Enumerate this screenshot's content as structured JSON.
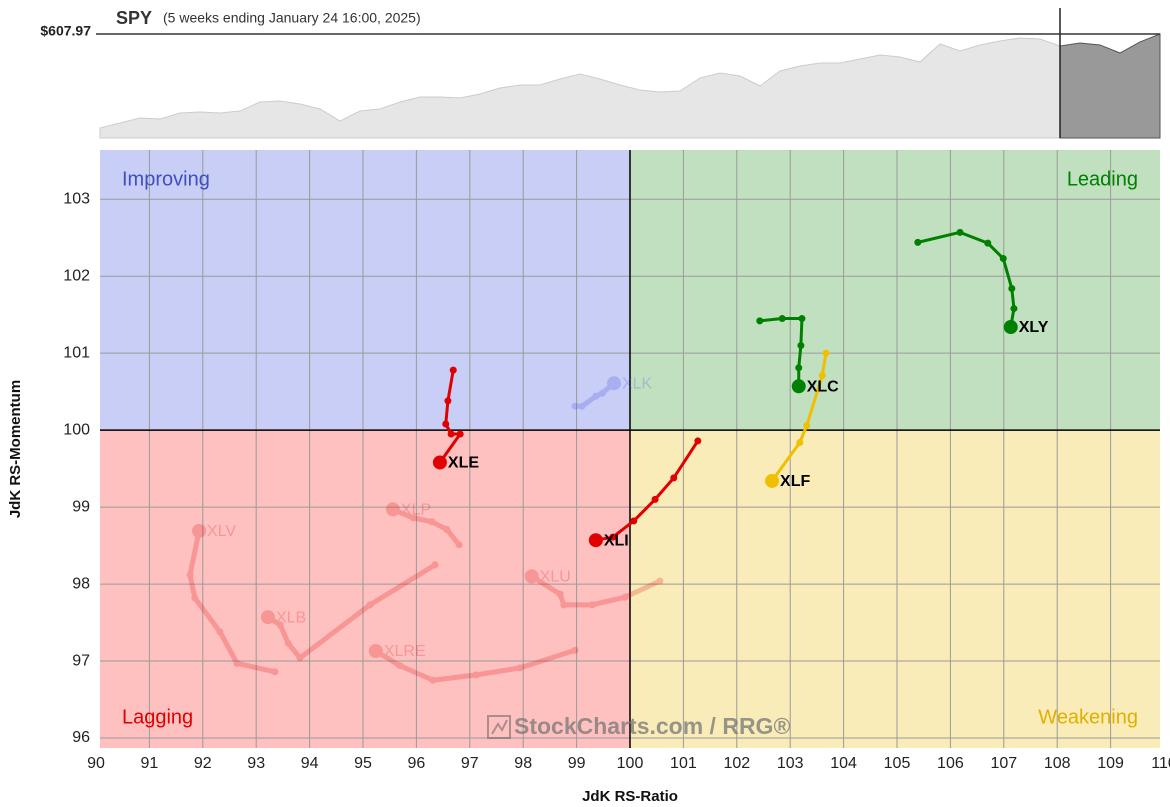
{
  "chart_data": [
    {
      "type": "area",
      "title": "SPY",
      "subtitle": "(5 weeks ending January 24 16:00, 2025)",
      "last_label": "$607.97",
      "color": "#e6e6e6",
      "highlight_color": "#999999",
      "ylim": [
        480,
        640
      ],
      "values": [
        492.3,
        498.5,
        504.6,
        503.4,
        510.8,
        512.0,
        510.8,
        513.2,
        524.3,
        525.5,
        521.8,
        515.7,
        500.9,
        513.2,
        515.7,
        524.3,
        530.5,
        530.5,
        529.2,
        534.2,
        541.5,
        545.2,
        545.2,
        552.6,
        558.8,
        552.6,
        545.2,
        539.1,
        536.6,
        537.8,
        553.8,
        560.0,
        556.3,
        544.0,
        562.5,
        568.6,
        572.3,
        572.3,
        577.2,
        582.2,
        579.7,
        573.5,
        595.7,
        587.1,
        594.5,
        599.4,
        603.1,
        601.8,
        593.2,
        596.9,
        594.5,
        584.6,
        598.2,
        607.97
      ]
    },
    {
      "type": "rrg",
      "xlabel": "JdK RS-Ratio",
      "ylabel": "JdK RS-Momentum",
      "watermark": "StockCharts.com / RRG®",
      "xlim": [
        90,
        110
      ],
      "ylim": [
        95.87,
        103.64
      ],
      "center": [
        100,
        100
      ],
      "grid": true,
      "xticks": [
        90,
        91,
        92,
        93,
        94,
        95,
        96,
        97,
        98,
        99,
        100,
        101,
        102,
        103,
        104,
        105,
        106,
        107,
        108,
        109,
        110
      ],
      "yticks": [
        96,
        97,
        98,
        99,
        100,
        101,
        102,
        103
      ],
      "quadrants": [
        {
          "label": "Improving",
          "color": "#c8cef5",
          "label_color": "#3f4fc0"
        },
        {
          "label": "Leading",
          "color": "#c0e0c0",
          "label_color": "#008000"
        },
        {
          "label": "Lagging",
          "color": "#ffc0c0",
          "label_color": "#e00000"
        },
        {
          "label": "Weakening",
          "color": "#faecb8",
          "label_color": "#e0b000"
        }
      ],
      "series": [
        {
          "name": "XLK",
          "color": "#4040e0",
          "faded": true,
          "x": [
            98.97,
            99.1,
            99.36,
            99.48,
            99.7
          ],
          "values": [
            100.31,
            100.31,
            100.44,
            100.48,
            100.61
          ]
        },
        {
          "name": "XLV",
          "color": "#e00000",
          "faded": true,
          "x": [
            93.35,
            92.64,
            92.32,
            91.85,
            91.76,
            91.93
          ],
          "values": [
            96.86,
            96.97,
            97.38,
            97.82,
            98.12,
            98.69
          ]
        },
        {
          "name": "XLP",
          "color": "#e00000",
          "faded": true,
          "x": [
            96.8,
            96.57,
            96.29,
            95.94,
            95.56
          ],
          "values": [
            98.51,
            98.71,
            98.81,
            98.86,
            98.97
          ]
        },
        {
          "name": "XLB",
          "color": "#e00000",
          "faded": true,
          "x": [
            96.35,
            95.13,
            93.82,
            93.6,
            93.45,
            93.22
          ],
          "values": [
            98.25,
            97.73,
            97.04,
            97.23,
            97.47,
            97.57
          ]
        },
        {
          "name": "XLRE",
          "color": "#e00000",
          "faded": true,
          "x": [
            98.97,
            97.94,
            97.12,
            96.31,
            95.69,
            95.24
          ],
          "values": [
            97.14,
            96.91,
            96.82,
            96.75,
            96.94,
            97.13
          ]
        },
        {
          "name": "XLU",
          "color": "#e00000",
          "faded": true,
          "x": [
            100.56,
            99.91,
            99.29,
            98.76,
            98.69,
            98.16
          ],
          "values": [
            98.04,
            97.83,
            97.73,
            97.73,
            97.87,
            98.1
          ]
        },
        {
          "name": "XLY",
          "color": "#008000",
          "faded": false,
          "x": [
            105.39,
            106.18,
            106.7,
            106.99,
            107.15,
            107.19,
            107.13
          ],
          "values": [
            102.44,
            102.57,
            102.43,
            102.23,
            101.84,
            101.58,
            101.34
          ]
        },
        {
          "name": "XLC",
          "color": "#008000",
          "faded": false,
          "x": [
            102.43,
            102.85,
            103.22,
            103.2,
            103.16,
            103.16
          ],
          "values": [
            101.42,
            101.45,
            101.45,
            101.1,
            100.81,
            100.57
          ]
        },
        {
          "name": "XLF",
          "color": "#f0c000",
          "faded": false,
          "x": [
            103.67,
            103.6,
            103.31,
            103.18,
            102.66
          ],
          "values": [
            101.0,
            100.71,
            100.06,
            99.84,
            99.34
          ]
        },
        {
          "name": "XLI",
          "color": "#e00000",
          "faded": false,
          "x": [
            101.27,
            100.82,
            100.47,
            100.07,
            99.68,
            99.36
          ],
          "values": [
            99.86,
            99.38,
            99.1,
            98.82,
            98.61,
            98.57
          ]
        },
        {
          "name": "XLE",
          "color": "#e00000",
          "faded": false,
          "x": [
            96.69,
            96.59,
            96.55,
            96.65,
            96.82,
            96.44
          ],
          "values": [
            100.78,
            100.38,
            100.08,
            99.95,
            99.95,
            99.58
          ]
        }
      ]
    }
  ]
}
